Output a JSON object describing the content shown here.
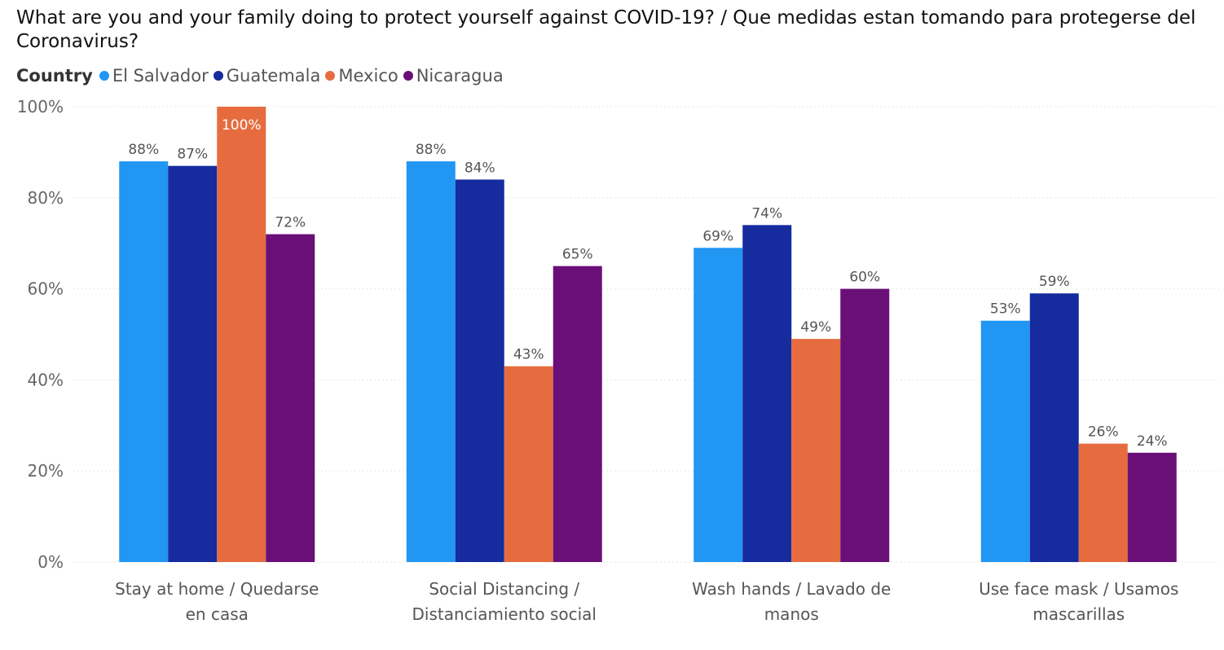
{
  "chart_data": {
    "type": "bar",
    "title": "What are you and your family doing to protect yourself against COVID-19? / Que medidas estan tomando para protegerse del Coronavirus?",
    "legend_title": "Country",
    "legend_position": "top-left",
    "grid": true,
    "ylim": [
      0,
      100
    ],
    "y_ticks": [
      "100%",
      "80%",
      "60%",
      "40%",
      "20%",
      "0%"
    ],
    "y_tick_values": [
      100,
      80,
      60,
      40,
      20,
      0
    ],
    "categories": [
      [
        "Stay at home / Quedarse",
        "en casa"
      ],
      [
        "Social Distancing /",
        "Distanciamiento social"
      ],
      [
        "Wash hands / Lavado de",
        "manos"
      ],
      [
        "Use face mask / Usamos",
        "mascarillas"
      ]
    ],
    "series": [
      {
        "name": "El Salvador",
        "color": "#2196F3",
        "values": [
          88,
          88,
          69,
          53
        ],
        "labels": [
          "88%",
          "88%",
          "69%",
          "53%"
        ]
      },
      {
        "name": "Guatemala",
        "color": "#152B9E",
        "values": [
          87,
          84,
          74,
          59
        ],
        "labels": [
          "87%",
          "84%",
          "74%",
          "59%"
        ]
      },
      {
        "name": "Mexico",
        "color": "#E66C3F",
        "values": [
          100,
          43,
          49,
          26
        ],
        "labels": [
          "100%",
          "43%",
          "49%",
          "26%"
        ]
      },
      {
        "name": "Nicaragua",
        "color": "#6A0F78",
        "values": [
          72,
          65,
          60,
          24
        ],
        "labels": [
          "72%",
          "65%",
          "60%",
          "24%"
        ]
      }
    ]
  }
}
